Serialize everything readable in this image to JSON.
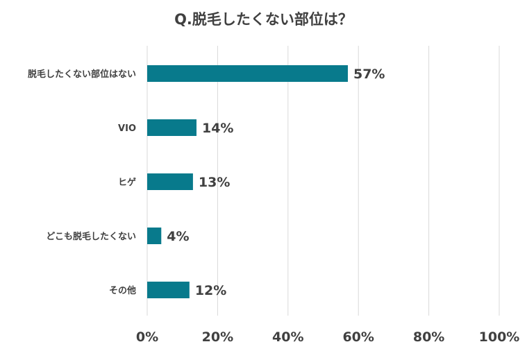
{
  "chart_data": {
    "type": "bar",
    "orientation": "horizontal",
    "title": "Q.脱毛したくない部位は？",
    "xlabel": "",
    "ylabel": "",
    "categories": [
      "脱毛したくない部位はない",
      "VIO",
      "ヒゲ",
      "どこも脱毛したくない",
      "その他"
    ],
    "values": [
      57,
      14,
      13,
      4,
      12
    ],
    "value_labels": [
      "57%",
      "14%",
      "13%",
      "4%",
      "12%"
    ],
    "xlim": [
      0,
      100
    ],
    "xticks": [
      0,
      20,
      40,
      60,
      80,
      100
    ],
    "xtick_labels": [
      "0%",
      "20%",
      "40%",
      "60%",
      "80%",
      "100%"
    ],
    "grid": true,
    "legend": "none",
    "bar_color": "#087a8c",
    "grid_color": "#d9d9d9"
  }
}
